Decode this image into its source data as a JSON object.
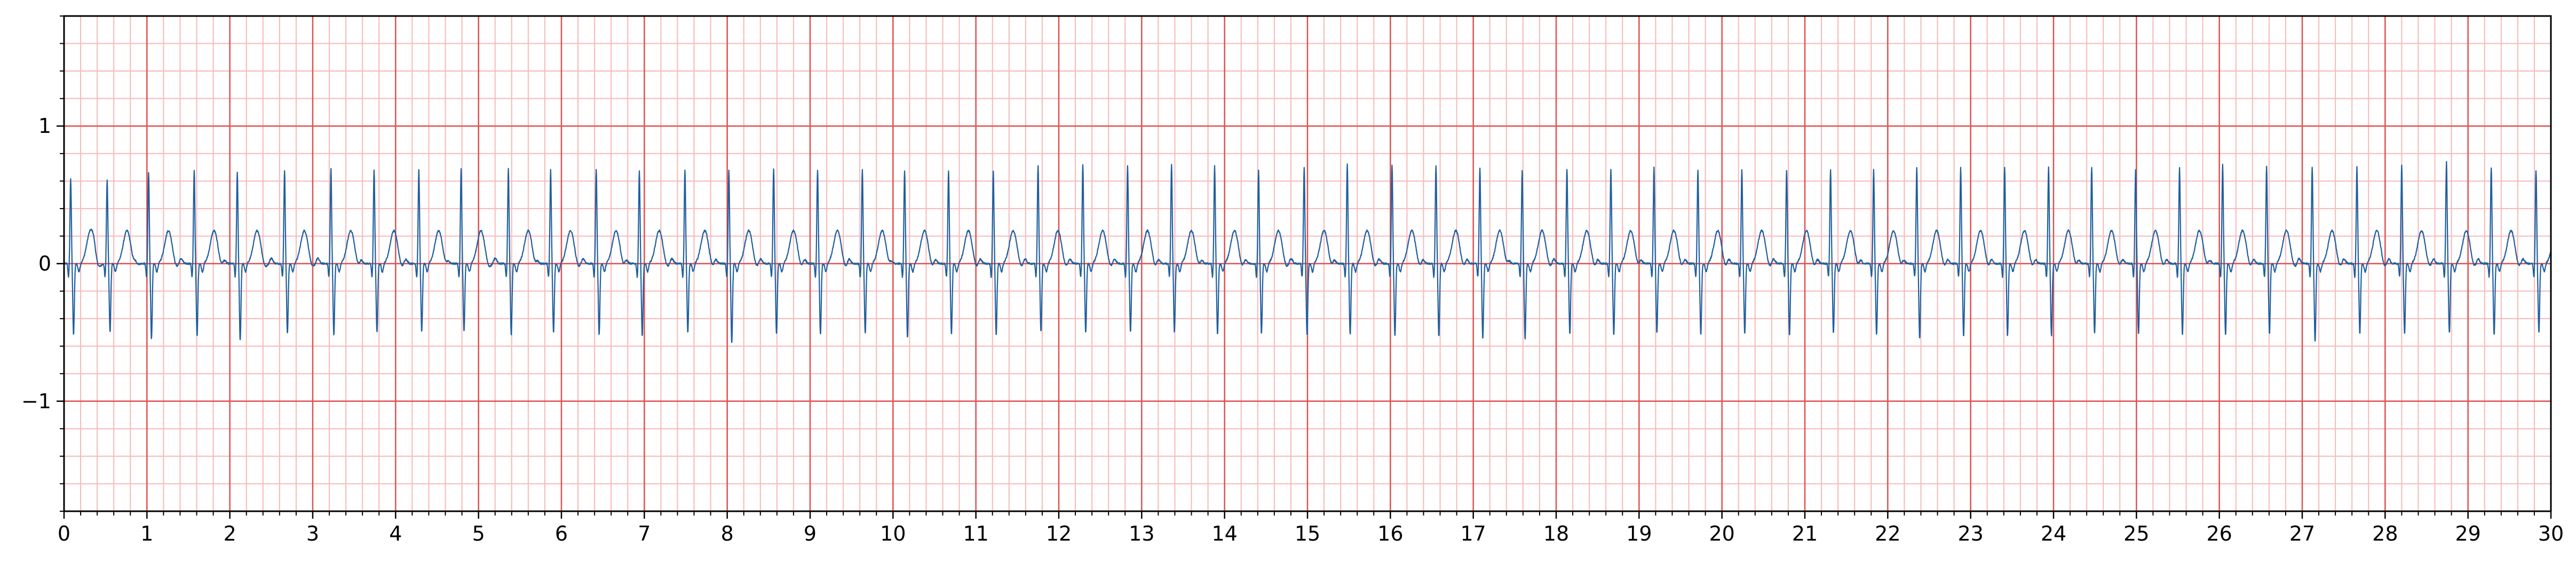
{
  "chart_data": {
    "type": "line",
    "title": "",
    "xlabel": "",
    "ylabel": "",
    "xlim": [
      0,
      30
    ],
    "ylim": [
      -1.8,
      1.8
    ],
    "x_ticks": [
      "0",
      "1",
      "2",
      "3",
      "4",
      "5",
      "6",
      "7",
      "8",
      "9",
      "10",
      "11",
      "12",
      "13",
      "14",
      "15",
      "16",
      "17",
      "18",
      "19",
      "20",
      "21",
      "22",
      "23",
      "24",
      "25",
      "26",
      "27",
      "28",
      "29",
      "30"
    ],
    "y_ticks": [
      {
        "value": 1,
        "label": "1"
      },
      {
        "value": 0,
        "label": "0"
      },
      {
        "value": -1,
        "label": "−1"
      }
    ],
    "grid": {
      "major_x_step": 1,
      "minor_x_step": 0.2,
      "major_y_step": 1,
      "minor_y_step": 0.2,
      "major_color": "#e05050",
      "minor_color": "#f7b8b8"
    },
    "series": [
      {
        "color": "#1f5f9f",
        "sampling_rate_hz": 300,
        "beat_times_s": [
          0.08,
          0.52,
          1.02,
          1.57,
          2.09,
          2.66,
          3.22,
          3.74,
          4.28,
          4.79,
          5.36,
          5.87,
          6.42,
          6.94,
          7.49,
          8.02,
          8.56,
          9.09,
          9.63,
          10.14,
          10.67,
          11.21,
          11.75,
          12.29,
          12.83,
          13.36,
          13.88,
          14.41,
          14.96,
          15.48,
          16.02,
          16.55,
          17.08,
          17.59,
          18.13,
          18.66,
          19.18,
          19.71,
          20.24,
          20.78,
          21.31,
          21.83,
          22.35,
          22.88,
          23.41,
          23.94,
          24.46,
          24.99,
          25.52,
          26.04,
          26.57,
          27.12,
          27.66,
          28.2,
          28.74,
          29.28,
          29.82
        ],
        "r_peak_amplitudes": [
          0.62,
          0.61,
          0.66,
          0.68,
          0.66,
          0.68,
          0.69,
          0.68,
          0.68,
          0.69,
          0.69,
          0.68,
          0.69,
          0.68,
          0.68,
          0.68,
          0.69,
          0.68,
          0.68,
          0.68,
          0.68,
          0.67,
          0.71,
          0.72,
          0.71,
          0.72,
          0.71,
          0.68,
          0.7,
          0.72,
          0.72,
          0.71,
          0.7,
          0.68,
          0.69,
          0.69,
          0.7,
          0.68,
          0.68,
          0.68,
          0.68,
          0.68,
          0.7,
          0.7,
          0.7,
          0.7,
          0.7,
          0.68,
          0.7,
          0.72,
          0.71,
          0.7,
          0.7,
          0.72,
          0.74,
          0.7,
          0.68
        ],
        "s_wave_amplitudes": [
          -0.52,
          -0.5,
          -0.55,
          -0.53,
          -0.56,
          -0.51,
          -0.52,
          -0.5,
          -0.5,
          -0.5,
          -0.52,
          -0.5,
          -0.52,
          -0.53,
          -0.5,
          -0.58,
          -0.52,
          -0.52,
          -0.51,
          -0.54,
          -0.52,
          -0.52,
          -0.5,
          -0.5,
          -0.5,
          -0.5,
          -0.52,
          -0.51,
          -0.52,
          -0.52,
          -0.53,
          -0.53,
          -0.55,
          -0.55,
          -0.52,
          -0.52,
          -0.51,
          -0.52,
          -0.51,
          -0.52,
          -0.51,
          -0.52,
          -0.55,
          -0.53,
          -0.53,
          -0.53,
          -0.51,
          -0.52,
          -0.52,
          -0.52,
          -0.51,
          -0.57,
          -0.51,
          -0.51,
          -0.51,
          -0.52,
          -0.5
        ],
        "t_wave_amplitude": 0.24
      }
    ]
  }
}
